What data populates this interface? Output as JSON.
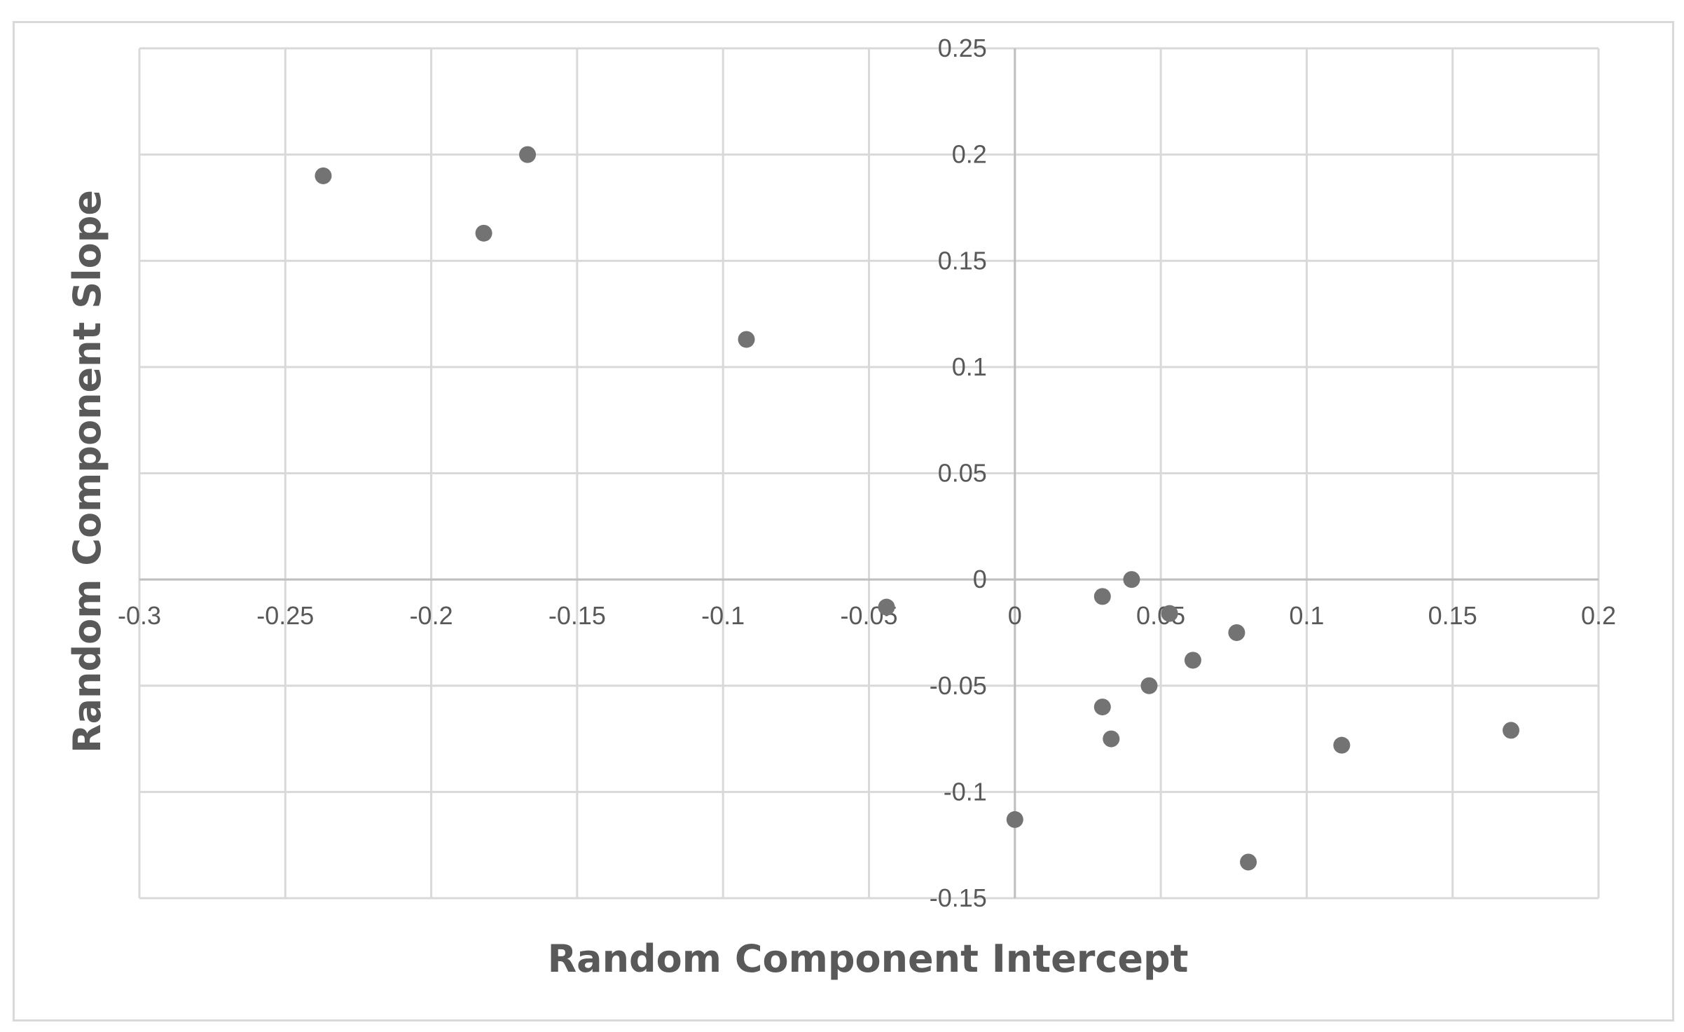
{
  "chart_data": {
    "type": "scatter",
    "title": "",
    "xlabel": "Random Component Intercept",
    "ylabel": "Random Component Slope",
    "xlim": [
      -0.3,
      0.2
    ],
    "ylim": [
      -0.15,
      0.25
    ],
    "x_ticks": [
      -0.3,
      -0.25,
      -0.2,
      -0.15,
      -0.1,
      -0.05,
      0,
      0.05,
      0.1,
      0.15,
      0.2
    ],
    "x_tick_labels": [
      "-0.3",
      "-0.25",
      "-0.2",
      "-0.15",
      "-0.1",
      "-0.05",
      "0",
      "0.05",
      "0.1",
      "0.15",
      "0.2"
    ],
    "y_ticks": [
      0.25,
      0.2,
      0.15,
      0.1,
      0.05,
      0,
      -0.05,
      -0.1,
      -0.15
    ],
    "y_tick_labels": [
      "0.25",
      "0.2",
      "0.15",
      "0.1",
      "0.05",
      "0",
      "-0.05",
      "-0.1",
      "-0.15"
    ],
    "grid": true,
    "legend": false,
    "point_color": "#737373",
    "series": [
      {
        "points": [
          {
            "x": -0.237,
            "y": 0.19
          },
          {
            "x": -0.167,
            "y": 0.2
          },
          {
            "x": -0.182,
            "y": 0.163
          },
          {
            "x": -0.092,
            "y": 0.113
          },
          {
            "x": -0.044,
            "y": -0.013
          },
          {
            "x": 0.0,
            "y": -0.113
          },
          {
            "x": 0.03,
            "y": -0.008
          },
          {
            "x": 0.04,
            "y": 0.0
          },
          {
            "x": 0.053,
            "y": -0.016
          },
          {
            "x": 0.076,
            "y": -0.025
          },
          {
            "x": 0.061,
            "y": -0.038
          },
          {
            "x": 0.046,
            "y": -0.05
          },
          {
            "x": 0.03,
            "y": -0.06
          },
          {
            "x": 0.033,
            "y": -0.075
          },
          {
            "x": 0.112,
            "y": -0.078
          },
          {
            "x": 0.17,
            "y": -0.071
          },
          {
            "x": 0.08,
            "y": -0.133
          }
        ]
      }
    ]
  }
}
